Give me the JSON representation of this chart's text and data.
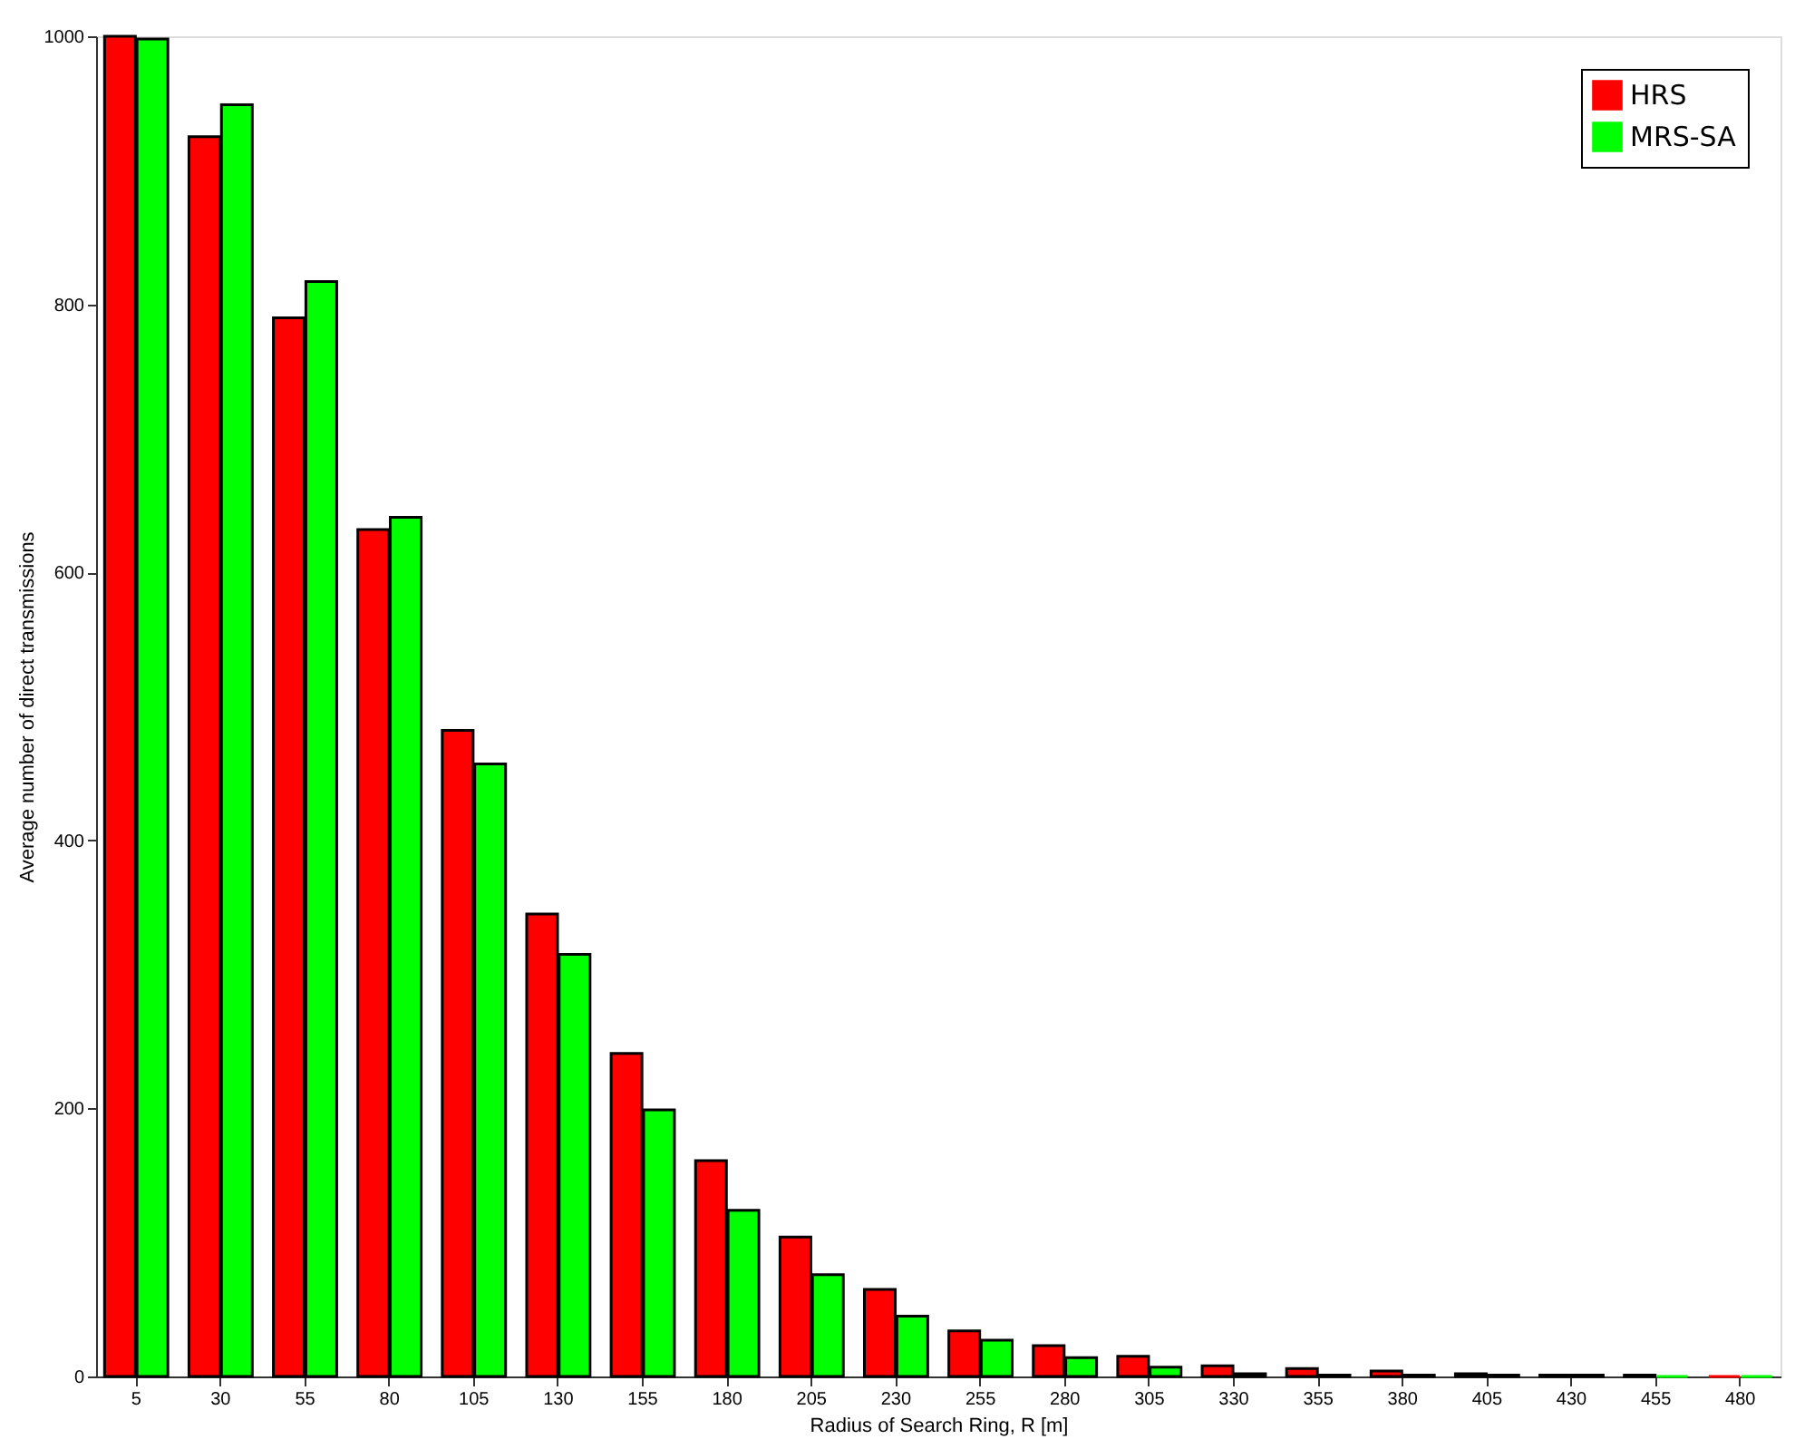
{
  "chart_data": {
    "type": "bar",
    "xlabel": "Radius of Search Ring, R [m]",
    "ylabel": "Average number of direct transmissions",
    "categories": [
      "5",
      "30",
      "55",
      "80",
      "105",
      "130",
      "155",
      "180",
      "205",
      "230",
      "255",
      "280",
      "305",
      "330",
      "355",
      "380",
      "405",
      "430",
      "455",
      "480"
    ],
    "series": [
      {
        "name": "HRS",
        "color": "#ff0000",
        "values": [
          1000,
          925,
          790,
          632,
          482,
          345,
          241,
          161,
          104,
          65,
          34,
          23,
          15,
          8,
          6,
          4,
          2,
          1,
          1,
          0
        ]
      },
      {
        "name": "MRS-SA",
        "color": "#00ff00",
        "values": [
          998,
          949,
          817,
          641,
          457,
          315,
          199,
          124,
          76,
          45,
          27,
          14,
          7,
          2,
          1,
          1,
          1,
          1,
          0,
          0
        ]
      }
    ],
    "ylim": [
      0,
      1000
    ],
    "yticks": [
      0,
      200,
      400,
      600,
      800,
      1000
    ],
    "grid": false,
    "legend": "top right"
  }
}
